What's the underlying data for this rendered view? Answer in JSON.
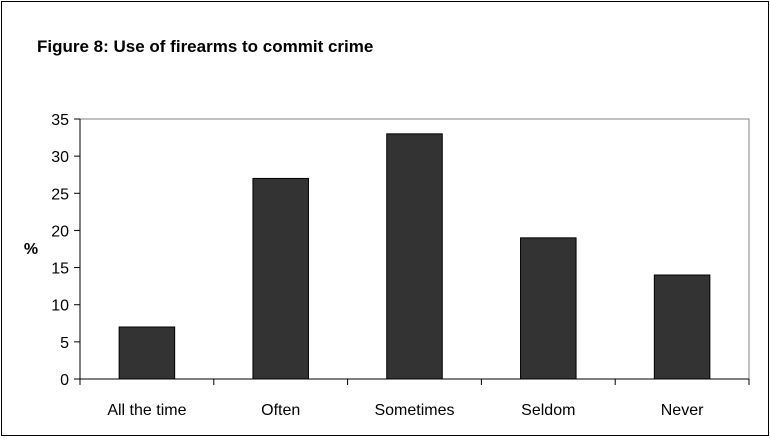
{
  "chart_data": {
    "type": "bar",
    "title": "Figure 8: Use of firearms to commit crime",
    "xlabel": "",
    "ylabel": "%",
    "categories": [
      "All the time",
      "Often",
      "Sometimes",
      "Seldom",
      "Never"
    ],
    "values": [
      7,
      27,
      33,
      19,
      14
    ],
    "ylim": [
      0,
      35
    ],
    "yticks": [
      "0",
      "5",
      "10",
      "15",
      "20",
      "25",
      "30",
      "35"
    ],
    "grid": false,
    "legend": "none",
    "colors": {
      "bar_fill": "#333333",
      "bar_stroke": "#000000",
      "plot_border": "#808080",
      "frame_border": "#000000"
    }
  }
}
